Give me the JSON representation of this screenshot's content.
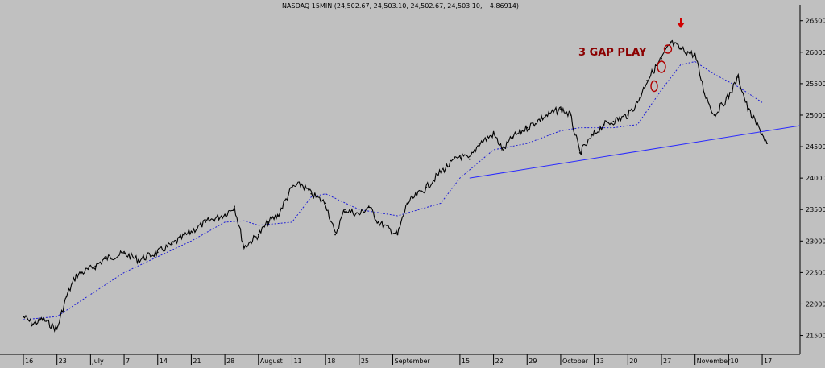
{
  "header": {
    "title": "NASDAQ 15MIN (24,502.67, 24,503.10, 24,502.67, 24,503.10, +4.86914)"
  },
  "colors": {
    "background": "#c0c0c0",
    "price": "#000000",
    "moving_average": "#1f1fd6",
    "trendline": "#2a2aff",
    "annotation": "#8b0000"
  },
  "chart_data": {
    "type": "line",
    "title": "NASDAQ 15MIN (24,502.67, 24,503.10, 24,502.67, 24,503.10, +4.86914)",
    "ylim": [
      21200,
      26650
    ],
    "y_ticks": [
      21500,
      22000,
      22500,
      23000,
      23500,
      24000,
      24500,
      25000,
      25500,
      26000,
      26500
    ],
    "x_ticks": [
      "16",
      "23",
      "July",
      "7",
      "14",
      "21",
      "28",
      "August",
      "11",
      "18",
      "25",
      "September",
      "15",
      "22",
      "29",
      "October",
      "13",
      "20",
      "27",
      "November",
      "10",
      "17"
    ],
    "grid": false,
    "series": [
      {
        "kind": "price",
        "x": [
          "Jun 16",
          "Jun 18",
          "Jun 20",
          "Jun 23",
          "Jun 25",
          "Jun 27",
          "Jul 1",
          "Jul 3",
          "Jul 7",
          "Jul 10",
          "Jul 14",
          "Jul 17",
          "Jul 21",
          "Jul 24",
          "Jul 28",
          "Jul 30",
          "Aug 1",
          "Aug 4",
          "Aug 6",
          "Aug 8",
          "Aug 11",
          "Aug 13",
          "Aug 15",
          "Aug 18",
          "Aug 20",
          "Aug 22",
          "Aug 25",
          "Aug 27",
          "Aug 29",
          "Sep 2",
          "Sep 4",
          "Sep 8",
          "Sep 11",
          "Sep 15",
          "Sep 17",
          "Sep 19",
          "Sep 22",
          "Sep 24",
          "Sep 26",
          "Sep 29",
          "Oct 2",
          "Oct 6",
          "Oct 8",
          "Oct 10",
          "Oct 13",
          "Oct 15",
          "Oct 17",
          "Oct 20",
          "Oct 22",
          "Oct 24",
          "Oct 27",
          "Oct 29",
          "Oct 31",
          "Nov 3",
          "Nov 5",
          "Nov 7",
          "Nov 10",
          "Nov 12",
          "Nov 14",
          "Nov 17",
          "Nov 18"
        ],
        "values": [
          21800,
          21680,
          21760,
          21600,
          22120,
          22450,
          22600,
          22720,
          22800,
          22700,
          22820,
          22950,
          23150,
          23300,
          23420,
          23550,
          22900,
          23100,
          23300,
          23400,
          23850,
          23900,
          23750,
          23600,
          23100,
          23500,
          23420,
          23550,
          23300,
          23100,
          23600,
          23850,
          24100,
          24350,
          24300,
          24550,
          24700,
          24450,
          24650,
          24800,
          24950,
          25100,
          25000,
          24400,
          24700,
          24850,
          24900,
          25000,
          25200,
          25550,
          25900,
          26150,
          26050,
          25950,
          25350,
          25000,
          25300,
          25600,
          25100,
          24700,
          24550
        ]
      },
      {
        "kind": "moving_average",
        "x": [
          "Jun 16",
          "Jun 23",
          "Jul 1",
          "Jul 7",
          "Jul 14",
          "Jul 21",
          "Jul 28",
          "Aug 1",
          "Aug 4",
          "Aug 11",
          "Aug 15",
          "Aug 18",
          "Aug 25",
          "Sep 2",
          "Sep 11",
          "Sep 15",
          "Sep 22",
          "Sep 29",
          "Oct 6",
          "Oct 10",
          "Oct 17",
          "Oct 22",
          "Oct 27",
          "Oct 31",
          "Nov 3",
          "Nov 7",
          "Nov 12",
          "Nov 17"
        ],
        "values": [
          21750,
          21800,
          22200,
          22500,
          22750,
          23000,
          23300,
          23320,
          23250,
          23300,
          23700,
          23750,
          23500,
          23400,
          23600,
          24000,
          24450,
          24550,
          24750,
          24800,
          24800,
          24850,
          25400,
          25800,
          25850,
          25650,
          25450,
          25200
        ]
      },
      {
        "kind": "trendline",
        "x": [
          "Sep 17",
          "Nov 18"
        ],
        "values": [
          24000,
          24750
        ]
      }
    ],
    "annotations": [
      {
        "text": "3 GAP PLAY"
      }
    ]
  }
}
